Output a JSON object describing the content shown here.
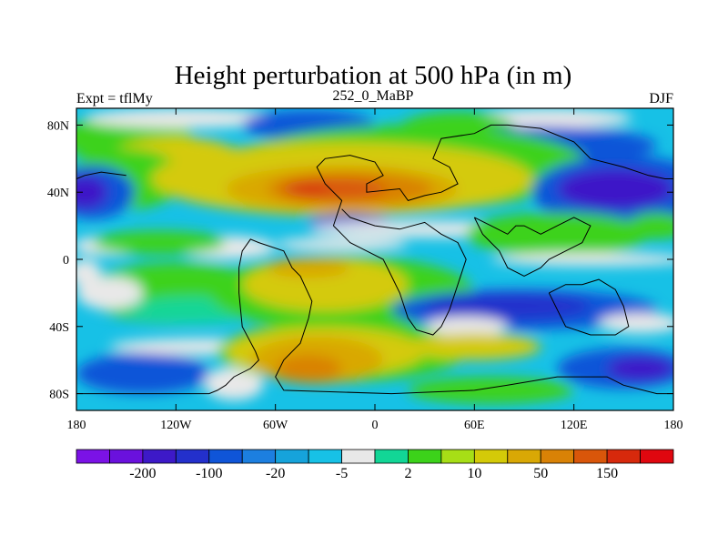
{
  "chart_data": {
    "type": "heatmap",
    "title": "Height perturbation at 500 hPa (in m)",
    "left_string": "Expt = tflMy",
    "center_string": "252_0_MaBP",
    "right_string": "DJF",
    "x_ticks": [
      {
        "value": -180,
        "label": "180"
      },
      {
        "value": -120,
        "label": "120W"
      },
      {
        "value": -60,
        "label": "60W"
      },
      {
        "value": 0,
        "label": "0"
      },
      {
        "value": 60,
        "label": "60E"
      },
      {
        "value": 120,
        "label": "120E"
      },
      {
        "value": 180,
        "label": "180"
      }
    ],
    "y_ticks": [
      {
        "value": 80,
        "label": "80N"
      },
      {
        "value": 40,
        "label": "40N"
      },
      {
        "value": 0,
        "label": "0"
      },
      {
        "value": -40,
        "label": "40S"
      },
      {
        "value": -80,
        "label": "80S"
      }
    ],
    "xlim": [
      -180,
      180
    ],
    "ylim": [
      -90,
      90
    ],
    "colorbar": {
      "colors": [
        "#7b12e6",
        "#6a11dd",
        "#3d19c8",
        "#2330cc",
        "#0f55d8",
        "#1c7fe0",
        "#16a3db",
        "#17c1e6",
        "#e8e8e8",
        "#12d696",
        "#3cd21a",
        "#a7de16",
        "#d4ca08",
        "#d9a805",
        "#d98206",
        "#d9560a",
        "#d7290c",
        "#e0070f"
      ],
      "labels": [
        {
          "boundary": 2,
          "text": "-200"
        },
        {
          "boundary": 4,
          "text": "-100"
        },
        {
          "boundary": 6,
          "text": "-20"
        },
        {
          "boundary": 8,
          "text": "-5"
        },
        {
          "boundary": 10,
          "text": "2"
        },
        {
          "boundary": 12,
          "text": "10"
        },
        {
          "boundary": 14,
          "text": "50"
        },
        {
          "boundary": 16,
          "text": "150"
        }
      ]
    },
    "field_background": "#17c1e6",
    "regions": [
      {
        "color": "#3cd21a",
        "lon": -150,
        "lat": 72,
        "rlon": 40,
        "rlat": 14
      },
      {
        "color": "#d4ca08",
        "lon": -120,
        "lat": 60,
        "rlon": 40,
        "rlat": 13
      },
      {
        "color": "#e8e8e8",
        "lon": -115,
        "lat": 84,
        "rlon": 60,
        "rlat": 6
      },
      {
        "color": "#0f55d8",
        "lon": -40,
        "lat": 80,
        "rlon": 40,
        "rlat": 9
      },
      {
        "color": "#e8e8e8",
        "lon": 105,
        "lat": 84,
        "rlon": 50,
        "rlat": 6
      },
      {
        "color": "#3cd21a",
        "lon": 50,
        "lat": 78,
        "rlon": 35,
        "rlat": 10
      },
      {
        "color": "#0f55d8",
        "lon": 100,
        "lat": 68,
        "rlon": 70,
        "rlat": 11
      },
      {
        "color": "#3cd21a",
        "lon": -150,
        "lat": 48,
        "rlon": 35,
        "rlat": 18
      },
      {
        "color": "#0f55d8",
        "lon": -170,
        "lat": 40,
        "rlon": 25,
        "rlat": 16
      },
      {
        "color": "#3d19c8",
        "lon": -175,
        "lat": 40,
        "rlon": 14,
        "rlat": 10
      },
      {
        "color": "#3cd21a",
        "lon": 20,
        "lat": 55,
        "rlon": 110,
        "rlat": 25
      },
      {
        "color": "#d4ca08",
        "lon": -20,
        "lat": 48,
        "rlon": 115,
        "rlat": 22
      },
      {
        "color": "#d9a805",
        "lon": -20,
        "lat": 42,
        "rlon": 70,
        "rlat": 14
      },
      {
        "color": "#d98206",
        "lon": -15,
        "lat": 42,
        "rlon": 50,
        "rlat": 10
      },
      {
        "color": "#d9560a",
        "lon": -25,
        "lat": 42,
        "rlon": 32,
        "rlat": 6
      },
      {
        "color": "#d7290c",
        "lon": -40,
        "lat": 42,
        "rlon": 12,
        "rlat": 3
      },
      {
        "color": "#0f55d8",
        "lon": 150,
        "lat": 40,
        "rlon": 55,
        "rlat": 22
      },
      {
        "color": "#3d19c8",
        "lon": 145,
        "lat": 42,
        "rlon": 35,
        "rlat": 12
      },
      {
        "color": "#0f55d8",
        "lon": -15,
        "lat": 22,
        "rlon": 25,
        "rlat": 5
      },
      {
        "color": "#e8e8e8",
        "lon": -160,
        "lat": 8,
        "rlon": 22,
        "rlat": 6
      },
      {
        "color": "#e8e8e8",
        "lon": -90,
        "lat": 7,
        "rlon": 30,
        "rlat": 7
      },
      {
        "color": "#e8e8e8",
        "lon": 40,
        "lat": 18,
        "rlon": 80,
        "rlat": 5
      },
      {
        "color": "#e8e8e8",
        "lon": -20,
        "lat": 9,
        "rlon": 40,
        "rlat": 4
      },
      {
        "color": "#3cd21a",
        "lon": -130,
        "lat": 10,
        "rlon": 40,
        "rlat": 7
      },
      {
        "color": "#d4ca08",
        "lon": 110,
        "lat": 15,
        "rlon": 40,
        "rlat": 8
      },
      {
        "color": "#3cd21a",
        "lon": 110,
        "lat": 15,
        "rlon": 55,
        "rlat": 13
      },
      {
        "color": "#e8e8e8",
        "lon": 130,
        "lat": 0,
        "rlon": 60,
        "rlat": 4
      },
      {
        "color": "#3cd21a",
        "lon": 170,
        "lat": 20,
        "rlon": 18,
        "rlat": 8
      },
      {
        "color": "#e8e8e8",
        "lon": -175,
        "lat": -8,
        "rlon": 10,
        "rlat": 8
      },
      {
        "color": "#3cd21a",
        "lon": -120,
        "lat": -20,
        "rlon": 55,
        "rlat": 18
      },
      {
        "color": "#e8e8e8",
        "lon": -160,
        "lat": -20,
        "rlon": 20,
        "rlat": 10
      },
      {
        "color": "#12d696",
        "lon": -110,
        "lat": -30,
        "rlon": 40,
        "rlat": 8
      },
      {
        "color": "#3cd21a",
        "lon": -20,
        "lat": -20,
        "rlon": 80,
        "rlat": 22
      },
      {
        "color": "#d4ca08",
        "lon": -30,
        "lat": -15,
        "rlon": 50,
        "rlat": 16
      },
      {
        "color": "#d9a805",
        "lon": -40,
        "lat": -5,
        "rlon": 25,
        "rlat": 6
      },
      {
        "color": "#0f55d8",
        "lon": 90,
        "lat": -30,
        "rlon": 80,
        "rlat": 12
      },
      {
        "color": "#2330cc",
        "lon": 80,
        "lat": -28,
        "rlon": 50,
        "rlat": 8
      },
      {
        "color": "#e8e8e8",
        "lon": 55,
        "lat": -40,
        "rlon": 25,
        "rlat": 6
      },
      {
        "color": "#e8e8e8",
        "lon": 160,
        "lat": -38,
        "rlon": 25,
        "rlat": 6
      },
      {
        "color": "#e8e8e8",
        "lon": -100,
        "lat": -52,
        "rlon": 60,
        "rlat": 5
      },
      {
        "color": "#0f55d8",
        "lon": -140,
        "lat": -68,
        "rlon": 40,
        "rlat": 12
      },
      {
        "color": "#e8e8e8",
        "lon": -85,
        "lat": -74,
        "rlon": 18,
        "rlat": 10
      },
      {
        "color": "#3cd21a",
        "lon": -20,
        "lat": -55,
        "rlon": 75,
        "rlat": 18
      },
      {
        "color": "#d4ca08",
        "lon": -30,
        "lat": -55,
        "rlon": 60,
        "rlat": 15
      },
      {
        "color": "#d9a805",
        "lon": -35,
        "lat": -60,
        "rlon": 40,
        "rlat": 14
      },
      {
        "color": "#d98206",
        "lon": -40,
        "lat": -65,
        "rlon": 20,
        "rlat": 8
      },
      {
        "color": "#3cd21a",
        "lon": 70,
        "lat": -78,
        "rlon": 50,
        "rlat": 8
      },
      {
        "color": "#d4ca08",
        "lon": 60,
        "lat": -52,
        "rlon": 40,
        "rlat": 8
      },
      {
        "color": "#0f55d8",
        "lon": 150,
        "lat": -65,
        "rlon": 40,
        "rlat": 12
      },
      {
        "color": "#3d19c8",
        "lon": 160,
        "lat": -65,
        "rlon": 20,
        "rlat": 7
      }
    ],
    "continent_outlines": [
      [
        [
          -180,
          -80
        ],
        [
          -100,
          -80
        ],
        [
          -95,
          -78
        ],
        [
          -90,
          -75
        ],
        [
          -85,
          -70
        ],
        [
          -75,
          -65
        ],
        [
          -70,
          -60
        ],
        [
          -72,
          -55
        ],
        [
          -80,
          -40
        ],
        [
          -82,
          -20
        ],
        [
          -82,
          -5
        ],
        [
          -80,
          5
        ],
        [
          -75,
          12
        ],
        [
          -70,
          10
        ],
        [
          -55,
          5
        ],
        [
          -50,
          -5
        ],
        [
          -45,
          -10
        ],
        [
          -38,
          -25
        ],
        [
          -40,
          -35
        ],
        [
          -45,
          -50
        ],
        [
          -55,
          -60
        ],
        [
          -60,
          -70
        ],
        [
          -55,
          -78
        ],
        [
          10,
          -80
        ],
        [
          60,
          -78
        ],
        [
          80,
          -75
        ],
        [
          110,
          -70
        ],
        [
          140,
          -70
        ],
        [
          150,
          -75
        ],
        [
          170,
          -80
        ],
        [
          180,
          -80
        ]
      ],
      [
        [
          -25,
          20
        ],
        [
          -20,
          35
        ],
        [
          -30,
          45
        ],
        [
          -35,
          55
        ],
        [
          -30,
          60
        ],
        [
          -15,
          62
        ],
        [
          0,
          58
        ],
        [
          5,
          50
        ],
        [
          -5,
          45
        ],
        [
          -5,
          40
        ],
        [
          15,
          42
        ],
        [
          20,
          35
        ],
        [
          30,
          38
        ],
        [
          40,
          40
        ],
        [
          50,
          45
        ],
        [
          45,
          55
        ],
        [
          35,
          60
        ],
        [
          40,
          72
        ],
        [
          60,
          75
        ],
        [
          70,
          80
        ],
        [
          80,
          80
        ],
        [
          100,
          78
        ],
        [
          120,
          70
        ],
        [
          130,
          60
        ],
        [
          150,
          55
        ],
        [
          165,
          50
        ],
        [
          175,
          48
        ],
        [
          180,
          48
        ]
      ],
      [
        [
          -180,
          48
        ],
        [
          -175,
          50
        ],
        [
          -165,
          52
        ],
        [
          -150,
          50
        ]
      ],
      [
        [
          -20,
          30
        ],
        [
          -15,
          25
        ],
        [
          0,
          20
        ],
        [
          15,
          18
        ],
        [
          30,
          22
        ],
        [
          40,
          15
        ],
        [
          50,
          10
        ],
        [
          55,
          0
        ],
        [
          50,
          -15
        ],
        [
          45,
          -30
        ],
        [
          40,
          -40
        ],
        [
          35,
          -45
        ],
        [
          25,
          -42
        ],
        [
          20,
          -35
        ],
        [
          15,
          -20
        ],
        [
          10,
          -10
        ],
        [
          5,
          0
        ],
        [
          -5,
          5
        ],
        [
          -15,
          10
        ],
        [
          -20,
          15
        ],
        [
          -25,
          20
        ]
      ],
      [
        [
          60,
          25
        ],
        [
          70,
          20
        ],
        [
          80,
          15
        ],
        [
          85,
          20
        ],
        [
          90,
          20
        ],
        [
          100,
          15
        ],
        [
          110,
          20
        ],
        [
          120,
          25
        ],
        [
          130,
          20
        ],
        [
          125,
          10
        ],
        [
          115,
          5
        ],
        [
          105,
          0
        ],
        [
          100,
          -5
        ],
        [
          90,
          -10
        ],
        [
          80,
          -5
        ],
        [
          75,
          5
        ],
        [
          70,
          10
        ],
        [
          65,
          15
        ],
        [
          60,
          25
        ]
      ],
      [
        [
          105,
          -20
        ],
        [
          115,
          -15
        ],
        [
          125,
          -15
        ],
        [
          135,
          -12
        ],
        [
          145,
          -18
        ],
        [
          150,
          -28
        ],
        [
          153,
          -40
        ],
        [
          145,
          -45
        ],
        [
          130,
          -45
        ],
        [
          115,
          -40
        ],
        [
          110,
          -30
        ],
        [
          105,
          -20
        ]
      ]
    ]
  }
}
